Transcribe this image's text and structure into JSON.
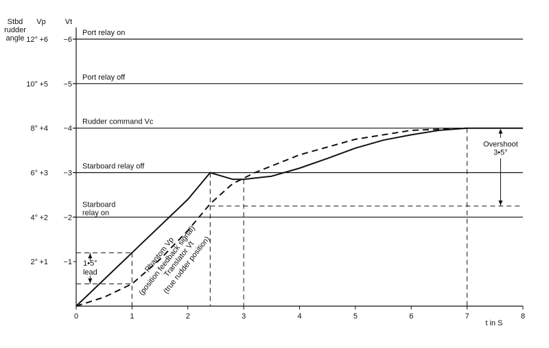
{
  "chart_data": {
    "type": "line",
    "axis_headers": {
      "stbd": [
        "Stbd",
        "rudder",
        "angle"
      ],
      "vp": "Vp",
      "vt": "Vt"
    },
    "y_ticks": [
      {
        "v": 1,
        "vt": "−1",
        "vp": "+1",
        "deg": "2°"
      },
      {
        "v": 2,
        "vt": "−2",
        "vp": "+2",
        "deg": "4°"
      },
      {
        "v": 3,
        "vt": "−3",
        "vp": "+3",
        "deg": "6°"
      },
      {
        "v": 4,
        "vt": "−4",
        "vp": "+4",
        "deg": "8°"
      },
      {
        "v": 5,
        "vt": "−5",
        "vp": "+5",
        "deg": "10°"
      },
      {
        "v": 6,
        "vt": "−6",
        "vp": "+6",
        "deg": "12°"
      }
    ],
    "x_ticks": [
      0,
      1,
      2,
      3,
      4,
      5,
      6,
      7,
      8
    ],
    "xlabel": "t in S",
    "xlim": [
      0,
      8
    ],
    "ylim": [
      0,
      6
    ],
    "levels": [
      {
        "name": "Port relay on",
        "v": 6
      },
      {
        "name": "Port relay off",
        "v": 5
      },
      {
        "name": "Rudder command Vc",
        "v": 4
      },
      {
        "name": "Starboard relay off",
        "v": 3
      },
      {
        "name": "Starboard relay on",
        "lines": [
          "Starboard",
          "relay on"
        ],
        "v": 2
      }
    ],
    "series": [
      {
        "name": "Phantom Vp",
        "annotation": "(position feedback signal)",
        "style": "solid",
        "points": [
          [
            0,
            0
          ],
          [
            1,
            1.2
          ],
          [
            2,
            2.4
          ],
          [
            2.4,
            3.0
          ],
          [
            2.8,
            2.85
          ],
          [
            3.0,
            2.85
          ],
          [
            3.5,
            2.92
          ],
          [
            4.0,
            3.1
          ],
          [
            4.5,
            3.32
          ],
          [
            5.0,
            3.55
          ],
          [
            5.5,
            3.73
          ],
          [
            6.0,
            3.85
          ],
          [
            6.5,
            3.95
          ],
          [
            7.0,
            4.0
          ],
          [
            8.0,
            4.0
          ]
        ]
      },
      {
        "name": "Translator Vt",
        "annotation": "(true rudder position)",
        "style": "dashed",
        "points": [
          [
            0,
            0
          ],
          [
            0.5,
            0.2
          ],
          [
            1,
            0.5
          ],
          [
            1.5,
            1.05
          ],
          [
            2.0,
            1.7
          ],
          [
            2.4,
            2.3
          ],
          [
            2.8,
            2.75
          ],
          [
            3.2,
            3.0
          ],
          [
            4.0,
            3.4
          ],
          [
            5.0,
            3.75
          ],
          [
            6.0,
            3.95
          ],
          [
            7.0,
            4.0
          ]
        ]
      }
    ],
    "annotations": {
      "lead": {
        "label": "1•5°",
        "sub": "lead",
        "x": 1,
        "y_top": 1.2,
        "y_bottom": 0.5
      },
      "overshoot": {
        "label": "Overshoot",
        "sub": "3•5°",
        "y_top": 4.0,
        "y_bottom": 2.25
      },
      "reference_lines": {
        "v_2_25": 2.25,
        "x_2_4": 2.4,
        "x_3": 3,
        "x_7": 7
      }
    }
  }
}
